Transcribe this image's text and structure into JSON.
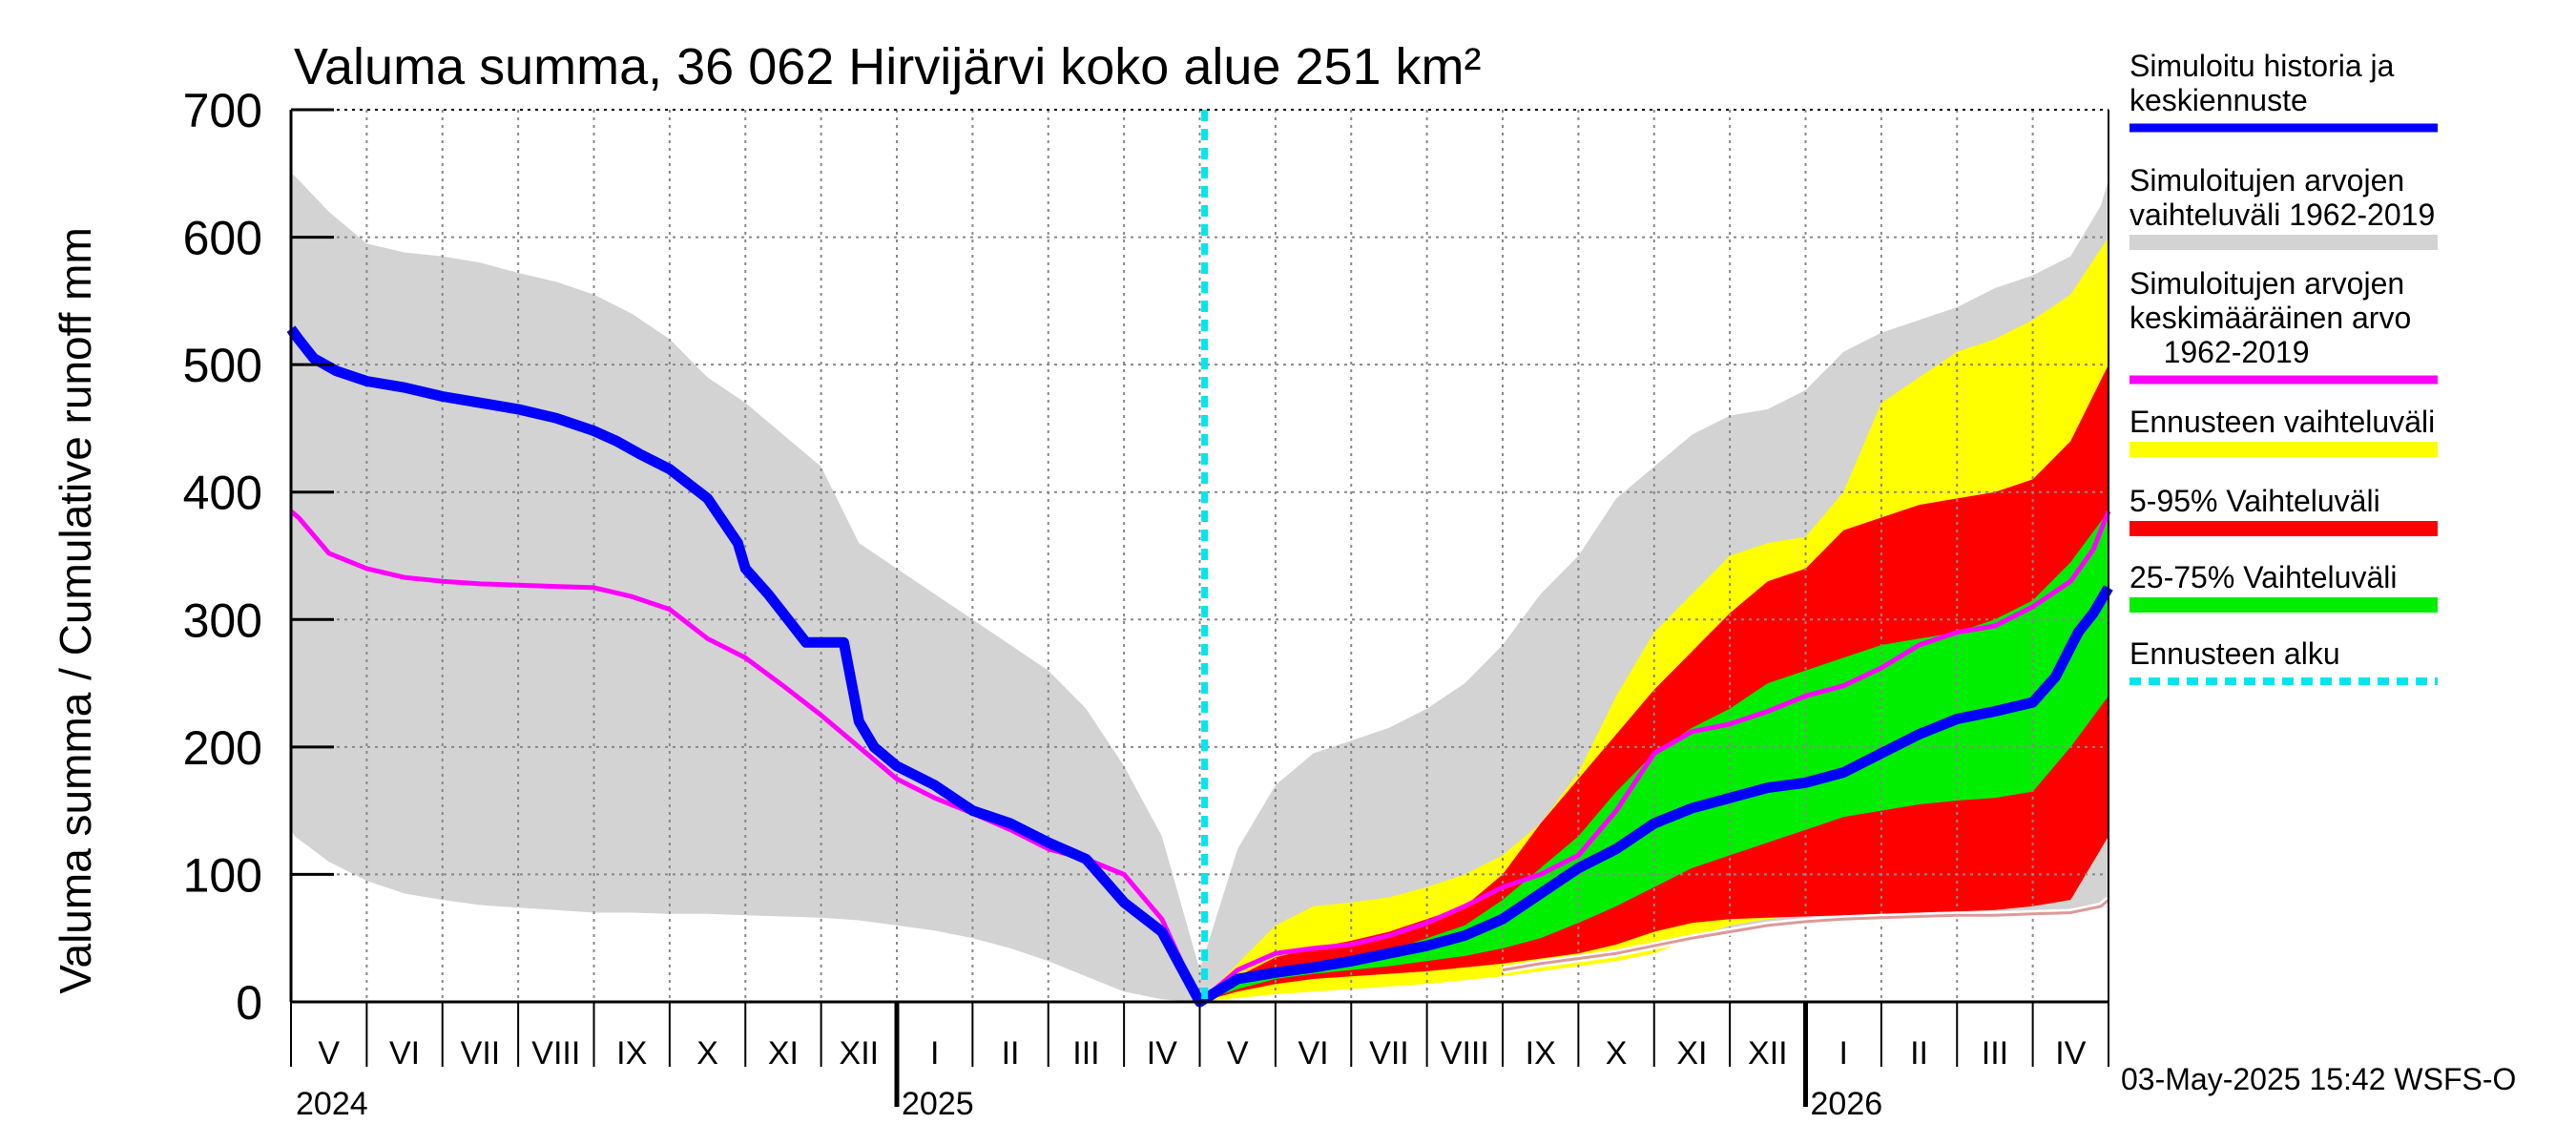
{
  "chart_data": {
    "type": "area",
    "title": "Valuma summa, 36 062 Hirvijärvi koko alue 251 km²",
    "ylabel": "Valuma summa / Cumulative runoff    mm",
    "xlabel": "",
    "ylim": [
      0,
      700
    ],
    "yticks": [
      0,
      100,
      200,
      300,
      400,
      500,
      600,
      700
    ],
    "grid": true,
    "months": [
      "V",
      "VI",
      "VII",
      "VIII",
      "IX",
      "X",
      "XI",
      "XII",
      "I",
      "II",
      "III",
      "IV",
      "V",
      "VI",
      "VII",
      "VIII",
      "IX",
      "X",
      "XI",
      "XII",
      "I",
      "II",
      "III",
      "IV"
    ],
    "years": [
      "2024",
      "2025",
      "2026"
    ],
    "forecast_start": "2025-05-03",
    "legend": [
      {
        "label": [
          "Simuloitu historia ja",
          "keskiennuste"
        ],
        "color": "#0000ff",
        "style": "line"
      },
      {
        "label": [
          "Simuloitujen arvojen",
          "vaihteluväli 1962-2019"
        ],
        "color": "#d3d3d3",
        "style": "band"
      },
      {
        "label": [
          "Simuloitujen arvojen",
          "keskimääräinen arvo",
          "    1962-2019"
        ],
        "color": "#ff00ff",
        "style": "line"
      },
      {
        "label": [
          "Ennusteen vaihteluväli"
        ],
        "color": "#ffff00",
        "style": "band"
      },
      {
        "label": [
          "5-95% Vaihteluväli"
        ],
        "color": "#ff0000",
        "style": "band"
      },
      {
        "label": [
          "25-75% Vaihteluväli"
        ],
        "color": "#00ee00",
        "style": "band"
      },
      {
        "label": [
          "Ennusteen alku"
        ],
        "color": "#00e5ee",
        "style": "dashed"
      }
    ],
    "footer": "03-May-2025 15:42 WSFS-O",
    "series": [
      {
        "name": "Simuloitujen arvojen vaihteluväli 1962-2019 (upper)",
        "color": "#d3d3d3",
        "x": [
          0,
          0.05,
          0.5,
          1,
          1.5,
          2,
          2.5,
          3,
          3.5,
          4,
          4.5,
          5,
          5.5,
          6,
          6.5,
          7,
          7.5,
          8,
          8.5,
          9,
          9.5,
          10,
          10.5,
          11,
          11.5,
          12,
          12.5,
          13,
          13.5,
          14,
          14.5,
          15,
          15.5,
          16,
          16.5,
          17,
          17.5,
          18,
          18.5,
          19,
          19.5,
          20,
          20.5,
          21,
          21.5,
          22,
          22.5,
          23,
          23.5,
          23.9,
          24
        ],
        "y": [
          650,
          648,
          620,
          595,
          588,
          585,
          580,
          572,
          565,
          555,
          540,
          520,
          490,
          470,
          445,
          420,
          360,
          340,
          320,
          300,
          280,
          260,
          230,
          185,
          130,
          25,
          120,
          170,
          195,
          205,
          215,
          230,
          250,
          280,
          320,
          350,
          395,
          420,
          445,
          460,
          465,
          480,
          510,
          525,
          535,
          545,
          560,
          570,
          585,
          625,
          645
        ]
      },
      {
        "name": "Simuloitujen arvojen vaihteluväli 1962-2019 (lower)",
        "color": "#d3d3d3",
        "x": [
          0,
          0.05,
          0.5,
          1,
          1.5,
          2,
          2.5,
          3,
          3.5,
          4,
          4.5,
          5,
          5.5,
          6,
          6.5,
          7,
          7.5,
          8,
          8.5,
          9,
          9.5,
          10,
          10.5,
          11,
          11.5,
          12,
          12.5,
          13,
          13.5,
          14,
          14.5,
          15,
          15.5,
          16,
          16.5,
          17,
          17.5,
          18,
          18.5,
          19,
          19.5,
          20,
          20.5,
          21,
          21.5,
          22,
          22.5,
          23,
          23.5,
          23.9,
          24
        ],
        "y": [
          135,
          130,
          110,
          95,
          85,
          80,
          76,
          74,
          72,
          70,
          70,
          69,
          69,
          68,
          67,
          66,
          64,
          60,
          56,
          50,
          42,
          32,
          20,
          8,
          2,
          0,
          5,
          10,
          14,
          16,
          18,
          20,
          22,
          25,
          30,
          34,
          38,
          44,
          50,
          55,
          60,
          63,
          65,
          66,
          67,
          68,
          68,
          69,
          70,
          75,
          80
        ]
      },
      {
        "name": "Ennusteen vaihteluväli (upper)",
        "color": "#ffff00",
        "x": [
          12,
          12.5,
          13,
          13.5,
          14,
          14.5,
          15,
          15.5,
          16,
          16.5,
          17,
          17.5,
          18,
          18.5,
          19,
          19.5,
          20,
          20.5,
          21,
          21.5,
          22,
          22.5,
          23,
          23.5,
          24
        ],
        "y": [
          0,
          30,
          60,
          75,
          78,
          82,
          90,
          100,
          115,
          140,
          180,
          240,
          290,
          320,
          350,
          360,
          365,
          400,
          470,
          490,
          510,
          520,
          535,
          555,
          600
        ]
      },
      {
        "name": "Ennusteen vaihteluväli (lower)",
        "color": "#ffff00",
        "x": [
          12,
          12.5,
          13,
          13.5,
          14,
          14.5,
          15,
          15.5,
          16,
          16.5,
          17,
          17.5,
          18,
          18.5,
          19,
          19.5,
          20,
          20.5,
          21,
          21.5,
          22,
          22.5,
          23,
          23.5,
          24
        ],
        "y": [
          0,
          3,
          6,
          8,
          10,
          12,
          14,
          17,
          20,
          24,
          28,
          32,
          38,
          50,
          60,
          65,
          68,
          69,
          70,
          71,
          72,
          73,
          75,
          80,
          130
        ]
      },
      {
        "name": "5-95% Vaihteluväli (upper)",
        "color": "#ff0000",
        "x": [
          12,
          12.5,
          13,
          13.5,
          14,
          14.5,
          15,
          15.5,
          16,
          16.5,
          17,
          17.5,
          18,
          18.5,
          19,
          19.5,
          20,
          20.5,
          21,
          21.5,
          22,
          22.5,
          23,
          23.5,
          24
        ],
        "y": [
          0,
          20,
          35,
          42,
          48,
          55,
          65,
          75,
          100,
          140,
          175,
          210,
          245,
          275,
          305,
          330,
          340,
          370,
          380,
          390,
          395,
          400,
          410,
          440,
          500
        ]
      },
      {
        "name": "5-95% Vaihteluväli (lower)",
        "color": "#ff0000",
        "x": [
          12,
          12.5,
          13,
          13.5,
          14,
          14.5,
          15,
          15.5,
          16,
          16.5,
          17,
          17.5,
          18,
          18.5,
          19,
          19.5,
          20,
          20.5,
          21,
          21.5,
          22,
          22.5,
          23,
          23.5,
          24
        ],
        "y": [
          0,
          8,
          14,
          18,
          20,
          22,
          24,
          27,
          30,
          34,
          38,
          45,
          55,
          62,
          65,
          66,
          67,
          68,
          69,
          70,
          71,
          72,
          75,
          80,
          130
        ]
      },
      {
        "name": "25-75% Vaihteluväli (upper)",
        "color": "#00ee00",
        "x": [
          12,
          12.5,
          13,
          13.5,
          14,
          14.5,
          15,
          15.5,
          16,
          16.5,
          17,
          17.5,
          18,
          18.5,
          19,
          19.5,
          20,
          20.5,
          21,
          21.5,
          22,
          22.5,
          23,
          23.5,
          24
        ],
        "y": [
          0,
          18,
          26,
          30,
          34,
          40,
          50,
          60,
          80,
          105,
          130,
          165,
          195,
          215,
          230,
          250,
          260,
          270,
          280,
          285,
          290,
          300,
          315,
          345,
          385
        ]
      },
      {
        "name": "25-75% Vaihteluväli (lower)",
        "color": "#00ee00",
        "x": [
          12,
          12.5,
          13,
          13.5,
          14,
          14.5,
          15,
          15.5,
          16,
          16.5,
          17,
          17.5,
          18,
          18.5,
          19,
          19.5,
          20,
          20.5,
          21,
          21.5,
          22,
          22.5,
          23,
          23.5,
          24
        ],
        "y": [
          0,
          10,
          18,
          22,
          25,
          28,
          32,
          36,
          42,
          50,
          62,
          75,
          90,
          105,
          115,
          125,
          135,
          145,
          150,
          155,
          158,
          160,
          165,
          200,
          240
        ]
      },
      {
        "name": "Simuloitujen arvojen keskimääräinen arvo 1962-2019",
        "color": "#ff00ff",
        "x": [
          0,
          0.1,
          0.5,
          1,
          1.5,
          2,
          2.5,
          3,
          3.5,
          4,
          4.5,
          5,
          5.5,
          6,
          6.5,
          7,
          7.5,
          8,
          8.5,
          9,
          9.5,
          10,
          10.5,
          11,
          11.5,
          12,
          12.5,
          13,
          13.5,
          14,
          14.5,
          15,
          15.5,
          16,
          16.5,
          17,
          17.5,
          18,
          18.5,
          19,
          19.5,
          20,
          20.5,
          21,
          21.5,
          22,
          22.5,
          23,
          23.5,
          23.8,
          24
        ],
        "y": [
          385,
          380,
          352,
          340,
          333,
          330,
          328,
          327,
          326,
          325,
          318,
          308,
          285,
          270,
          248,
          225,
          200,
          175,
          160,
          148,
          135,
          120,
          112,
          100,
          65,
          0,
          25,
          38,
          42,
          45,
          52,
          62,
          75,
          90,
          100,
          115,
          150,
          195,
          212,
          218,
          228,
          240,
          248,
          262,
          280,
          290,
          295,
          310,
          330,
          355,
          385
        ]
      },
      {
        "name": "Simuloitu historia ja keskiennuste",
        "color": "#0000ff",
        "x": [
          0,
          0.1,
          0.3,
          0.6,
          1,
          1.5,
          2,
          2.5,
          3,
          3.5,
          4,
          4.3,
          4.6,
          5,
          5.5,
          5.9,
          6,
          6.3,
          6.8,
          7.3,
          7.5,
          7.7,
          8,
          8.5,
          9,
          9.5,
          10,
          10.5,
          11,
          11.5,
          12,
          12.5,
          13,
          13.5,
          14,
          14.5,
          15,
          15.5,
          16,
          16.5,
          17,
          17.5,
          18,
          18.5,
          19,
          19.5,
          20,
          20.5,
          21,
          21.5,
          22,
          22.5,
          23,
          23.3,
          23.6,
          23.8,
          24
        ],
        "y": [
          528,
          520,
          505,
          495,
          487,
          482,
          475,
          470,
          465,
          458,
          448,
          440,
          430,
          418,
          395,
          360,
          340,
          320,
          282,
          282,
          220,
          200,
          185,
          170,
          150,
          140,
          125,
          112,
          78,
          55,
          0,
          18,
          23,
          27,
          32,
          38,
          44,
          52,
          65,
          85,
          105,
          120,
          140,
          152,
          160,
          168,
          172,
          180,
          195,
          210,
          222,
          228,
          235,
          255,
          290,
          305,
          325
        ]
      }
    ]
  }
}
